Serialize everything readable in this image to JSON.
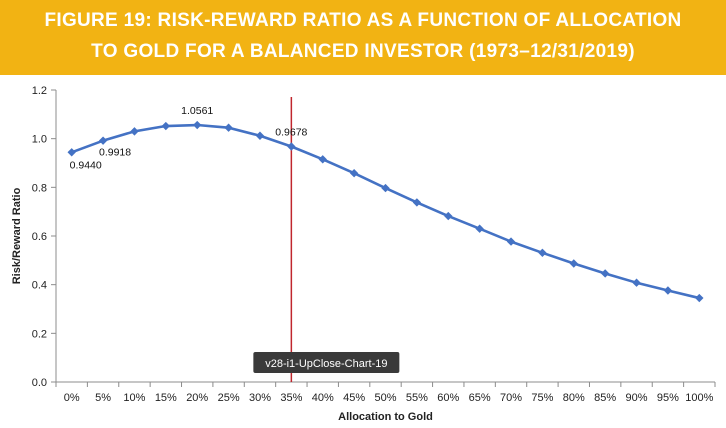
{
  "banner": {
    "line1": "FIGURE 19: RISK-REWARD RATIO AS A FUNCTION OF ALLOCATION",
    "line2": "TO GOLD FOR A BALANCED INVESTOR (1973–12/31/2019)",
    "color": "#f2b313"
  },
  "chart_data": {
    "type": "line",
    "title": "FIGURE 19: RISK-REWARD RATIO AS A FUNCTION OF ALLOCATION TO GOLD FOR A BALANCED INVESTOR (1973–12/31/2019)",
    "xlabel": "Allocation to Gold",
    "ylabel": "Risk/Reward Ratio",
    "categories": [
      "0%",
      "5%",
      "10%",
      "15%",
      "20%",
      "25%",
      "30%",
      "35%",
      "40%",
      "45%",
      "50%",
      "55%",
      "60%",
      "65%",
      "70%",
      "75%",
      "80%",
      "85%",
      "90%",
      "95%",
      "100%"
    ],
    "series": [
      {
        "color": "#4472c4",
        "values": [
          0.944,
          0.9918,
          1.03,
          1.052,
          1.0561,
          1.045,
          1.012,
          0.9678,
          0.915,
          0.858,
          0.797,
          0.738,
          0.682,
          0.63,
          0.577,
          0.531,
          0.487,
          0.446,
          0.408,
          0.376,
          0.345
        ]
      }
    ],
    "ylim": [
      0.0,
      1.2
    ],
    "yticks": [
      "0.0",
      "0.2",
      "0.4",
      "0.6",
      "0.8",
      "1.0",
      "1.2"
    ],
    "grid": false,
    "data_labels": [
      {
        "index": 0,
        "text": "0.9440"
      },
      {
        "index": 1,
        "text": "0.9918"
      },
      {
        "index": 4,
        "text": "1.0561"
      },
      {
        "index": 7,
        "text": "0.9678"
      }
    ],
    "reference_line": {
      "category": "35%",
      "color": "#c0262d"
    },
    "annotation": "v28-i1-UpClose-Chart-19"
  }
}
